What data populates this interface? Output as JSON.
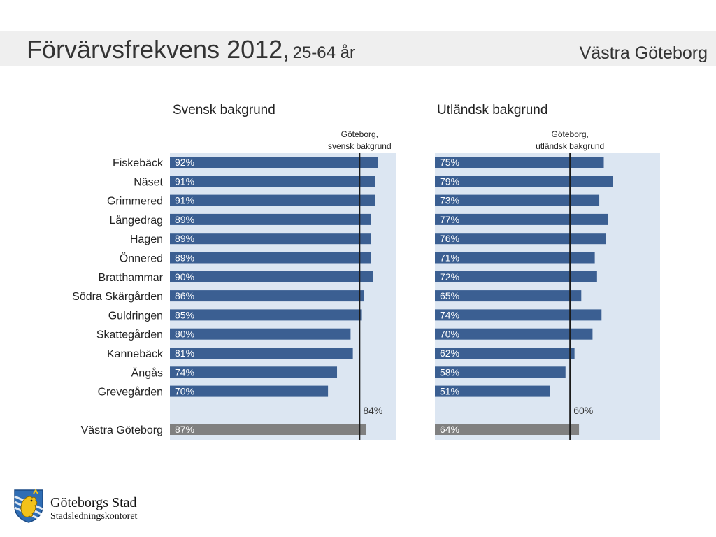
{
  "header": {
    "title_main": "Förvärvsfrekvens 2012,",
    "title_sub": "25-64 år",
    "region": "Västra Göteborg"
  },
  "logo": {
    "name": "Göteborgs Stad",
    "dept": "Stadsledningskontoret"
  },
  "colors": {
    "bar": "#3b5f92",
    "total_bar": "#808080",
    "panel_bg": "#dce6f2",
    "ref_line": "#1a1a1a",
    "header_bg": "#efefef"
  },
  "chart_data": [
    {
      "type": "bar",
      "orientation": "horizontal",
      "title": "Svensk bakgrund",
      "categories": [
        "Fiskebäck",
        "Näset",
        "Grimmered",
        "Långedrag",
        "Hagen",
        "Önnered",
        "Bratthammar",
        "Södra Skärgården",
        "Guldringen",
        "Skattegården",
        "Kannebäck",
        "Ängås",
        "Grevegården"
      ],
      "values": [
        92,
        91,
        91,
        89,
        89,
        89,
        90,
        86,
        85,
        80,
        81,
        74,
        70
      ],
      "labels": [
        "92%",
        "91%",
        "91%",
        "89%",
        "89%",
        "89%",
        "90%",
        "86%",
        "85%",
        "80%",
        "81%",
        "74%",
        "70%"
      ],
      "total": {
        "category": "Västra Göteborg",
        "value": 87,
        "label": "87%"
      },
      "reference": {
        "value": 84,
        "label": "84%",
        "caption_line1": "Göteborg,",
        "caption_line2": "svensk bakgrund"
      },
      "xlim": [
        0,
        110
      ]
    },
    {
      "type": "bar",
      "orientation": "horizontal",
      "title": "Utländsk bakgrund",
      "categories": [
        "Fiskebäck",
        "Näset",
        "Grimmered",
        "Långedrag",
        "Hagen",
        "Önnered",
        "Bratthammar",
        "Södra Skärgården",
        "Guldringen",
        "Skattegården",
        "Kannebäck",
        "Ängås",
        "Grevegården"
      ],
      "values": [
        75,
        79,
        73,
        77,
        76,
        71,
        72,
        65,
        74,
        70,
        62,
        58,
        51
      ],
      "labels": [
        "75%",
        "79%",
        "73%",
        "77%",
        "76%",
        "71%",
        "72%",
        "65%",
        "74%",
        "70%",
        "62%",
        "58%",
        "51%"
      ],
      "total": {
        "category": "Västra Göteborg",
        "value": 64,
        "label": "64%"
      },
      "reference": {
        "value": 60,
        "label": "60%",
        "caption_line1": "Göteborg,",
        "caption_line2": "utländsk bakgrund"
      },
      "xlim": [
        0,
        100
      ]
    }
  ]
}
